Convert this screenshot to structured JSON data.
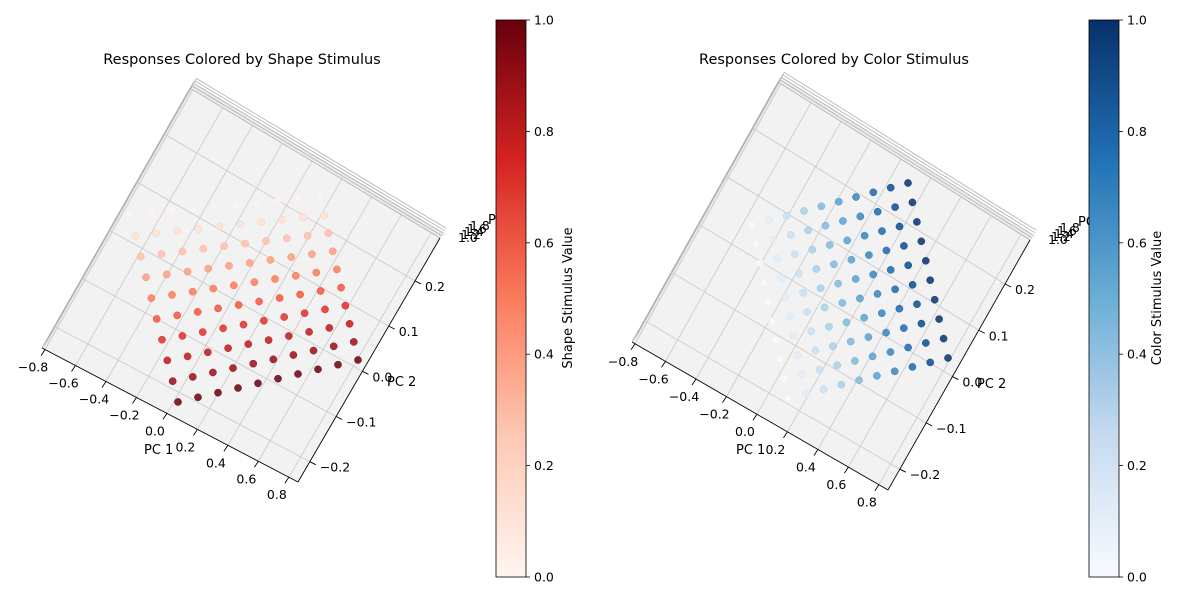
{
  "figure": {
    "background": "#ffffff"
  },
  "chart_data": [
    {
      "type": "scatter",
      "projection": "3d",
      "title": "Responses Colored by Shape Stimulus",
      "xlabel": "PC 1",
      "ylabel": "PC 2",
      "zlabel": "PC 3",
      "x_ticks": [
        "−0.8",
        "−0.6",
        "−0.4",
        "−0.2",
        "0.0",
        "0.2",
        "0.4",
        "0.6",
        "0.8"
      ],
      "y_ticks": [
        "−0.2",
        "−0.1",
        "0.0",
        "0.1",
        "0.2"
      ],
      "z_ticks": [
        "1.0",
        "1.2",
        "1.4",
        "1.6",
        "1.8"
      ],
      "grid": true,
      "colormap": "Reds",
      "color_by": "shape",
      "colorbar": {
        "label": "Shape Stimulus Value",
        "ticks": [
          "0.0",
          "0.2",
          "0.4",
          "0.6",
          "0.8",
          "1.0"
        ],
        "range": [
          0,
          1
        ]
      },
      "grid_size": 10,
      "points_note": "10 x 10 grid of shape (0–1) x color (0–1) stimulus values"
    },
    {
      "type": "scatter",
      "projection": "3d",
      "title": "Responses Colored by Color Stimulus",
      "xlabel": "PC 1",
      "ylabel": "PC 2",
      "zlabel": "PC 3",
      "x_ticks": [
        "−0.8",
        "−0.6",
        "−0.4",
        "−0.2",
        "0.0",
        "0.2",
        "0.4",
        "0.6",
        "0.8"
      ],
      "y_ticks": [
        "−0.2",
        "−0.1",
        "0.0",
        "0.1",
        "0.2"
      ],
      "z_ticks": [
        "1.0",
        "1.2",
        "1.4",
        "1.6",
        "1.8"
      ],
      "grid": true,
      "colormap": "Blues",
      "color_by": "color",
      "colorbar": {
        "label": "Color Stimulus Value",
        "ticks": [
          "0.0",
          "0.2",
          "0.4",
          "0.6",
          "0.8",
          "1.0"
        ],
        "range": [
          0,
          1
        ]
      },
      "grid_size": 10
    }
  ]
}
